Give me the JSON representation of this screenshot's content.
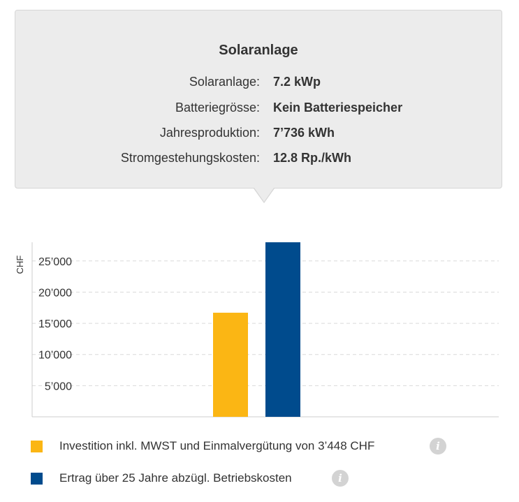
{
  "card": {
    "title": "Solaranlage",
    "rows": [
      {
        "label": "Solaranlage:",
        "value": "7.2 kWp"
      },
      {
        "label": "Batteriegrösse:",
        "value": "Kein Batteriespeicher"
      },
      {
        "label": "Jahresproduktion:",
        "value": "7’736 kWh"
      },
      {
        "label": "Stromgestehungskosten:",
        "value": "12.8 Rp./kWh"
      }
    ]
  },
  "chart_data": {
    "type": "bar",
    "ylabel": "CHF",
    "ylim": [
      0,
      28000
    ],
    "yticks": [
      5000,
      10000,
      15000,
      20000,
      25000
    ],
    "ytick_labels": [
      "5’000",
      "10’000",
      "15’000",
      "20’000",
      "25’000"
    ],
    "grid": true,
    "series": [
      {
        "name": "Investition inkl. MWST und Einmalvergütung von 3’448 CHF",
        "color": "#fbb614",
        "value": 16700
      },
      {
        "name": "Ertrag über 25 Jahre abzügl. Betriebskosten",
        "color": "#004b8d",
        "value": 28000
      }
    ]
  },
  "legend": {
    "items": [
      {
        "label": "Investition inkl. MWST und Einmalvergütung von 3’448 CHF",
        "color": "#fbb614",
        "icon": "info-icon",
        "icon_glyph": "i"
      },
      {
        "label": "Ertrag über 25 Jahre abzügl. Betriebskosten",
        "color": "#004b8d",
        "icon": "info-icon",
        "icon_glyph": "i"
      }
    ]
  }
}
